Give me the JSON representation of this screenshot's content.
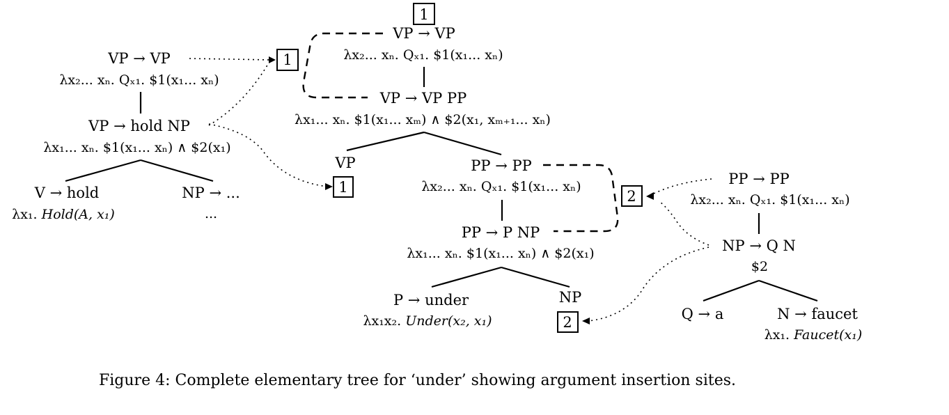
{
  "caption": "Figure 4: Complete elementary tree for ‘under’ showing argument insertion sites.",
  "arrow": "→",
  "sites": {
    "one": "1",
    "two": "2"
  },
  "left_tree": {
    "root": {
      "lhs": "VP",
      "rhs": "VP",
      "sem": "λx₂... xₙ. Qₓ₁. $1(x₁... xₙ)"
    },
    "mid": {
      "lhs": "VP",
      "rhs": "hold NP",
      "sem": "λx₁... xₙ. $1(x₁... xₙ) ∧ $2(x₁)"
    },
    "v": {
      "lhs": "V",
      "rhs": "hold",
      "sem_lambda": "λx₁.",
      "sem_pred": "Hold(A, x₁)"
    },
    "np": {
      "lhs": "NP",
      "rhs": "...",
      "sem": "..."
    }
  },
  "under_tree": {
    "root": {
      "lhs": "VP",
      "rhs": "VP",
      "sem": "λx₂... xₙ. Qₓ₁. $1(x₁... xₙ)"
    },
    "vp_pp": {
      "lhs": "VP",
      "rhs": "VP PP",
      "sem": "λx₁... xₙ. $1(x₁... xₘ) ∧ $2(x₁, xₘ₊₁... xₙ)"
    },
    "vp_leaf": "VP",
    "pp_top": {
      "lhs": "PP",
      "rhs": "PP",
      "sem": "λx₂... xₙ. Qₓ₁. $1(x₁... xₙ)"
    },
    "pp_pnp": {
      "lhs": "PP",
      "rhs": "P NP",
      "sem": "λx₁... xₙ. $1(x₁... xₙ) ∧ $2(x₁)"
    },
    "p": {
      "lhs": "P",
      "rhs": "under",
      "sem_lambda": "λx₁x₂.",
      "sem_pred": "Under(x₂, x₁)"
    },
    "np_leaf": "NP"
  },
  "right_tree": {
    "root": {
      "lhs": "PP",
      "rhs": "PP",
      "sem": "λx₂... xₙ. Qₓ₁. $1(x₁... xₙ)"
    },
    "np": {
      "lhs": "NP",
      "rhs": "Q N",
      "sem": "$2"
    },
    "q": {
      "lhs": "Q",
      "rhs": "a"
    },
    "n": {
      "lhs": "N",
      "rhs": "faucet",
      "sem_lambda": "λx₁.",
      "sem_pred": "Faucet(x₁)"
    }
  }
}
